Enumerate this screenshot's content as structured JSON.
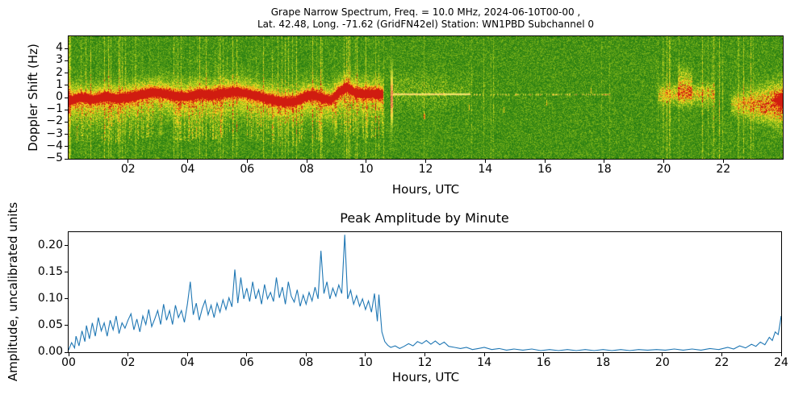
{
  "chart_data": [
    {
      "type": "heatmap",
      "name": "doppler-spectrogram",
      "title_line1": "Grape Narrow Spectrum, Freq. = 10.0 MHz, 2024-06-10T00-00 ,",
      "title_line2": "Lat.  42.48, Long. -71.62 (GridFN42el) Station: WN1PBD Subchannel 0",
      "xlabel": "Hours, UTC",
      "ylabel": "Doppler Shift (Hz)",
      "xlim": [
        0,
        24
      ],
      "ylim": [
        -5,
        5
      ],
      "xticks": [
        2,
        4,
        6,
        8,
        10,
        12,
        14,
        16,
        18,
        20,
        22
      ],
      "xtick_labels": [
        "02",
        "04",
        "06",
        "08",
        "10",
        "12",
        "14",
        "16",
        "18",
        "20",
        "22"
      ],
      "yticks": [
        4,
        3,
        2,
        1,
        0,
        -1,
        -2,
        -3,
        -4,
        -5
      ],
      "ytick_labels": [
        "4",
        "3",
        "2",
        "1",
        "0",
        "−1",
        "−2",
        "−3",
        "−4",
        "−5"
      ],
      "colormap": "green-yellow-orange-red",
      "background_color": "#1f7a14",
      "carrier_track": [
        [
          0,
          -0.25
        ],
        [
          0.4,
          0.05
        ],
        [
          0.8,
          -0.15
        ],
        [
          1.2,
          0.1
        ],
        [
          1.6,
          -0.05
        ],
        [
          2.0,
          0.05
        ],
        [
          2.4,
          0.25
        ],
        [
          2.8,
          0.45
        ],
        [
          3.2,
          0.35
        ],
        [
          3.6,
          0.15
        ],
        [
          4.0,
          0.1
        ],
        [
          4.4,
          0.35
        ],
        [
          4.8,
          0.2
        ],
        [
          5.2,
          0.4
        ],
        [
          5.6,
          0.5
        ],
        [
          6.0,
          0.35
        ],
        [
          6.4,
          0.1
        ],
        [
          6.8,
          -0.15
        ],
        [
          7.2,
          -0.35
        ],
        [
          7.6,
          -0.3
        ],
        [
          7.9,
          0.1
        ],
        [
          8.2,
          0.25
        ],
        [
          8.5,
          0.0
        ],
        [
          8.8,
          -0.2
        ],
        [
          9.1,
          0.5
        ],
        [
          9.35,
          0.85
        ],
        [
          9.6,
          0.45
        ],
        [
          9.9,
          0.3
        ],
        [
          10.2,
          0.35
        ],
        [
          10.55,
          0.3
        ]
      ],
      "features": {
        "main_band": {
          "start_hour": 0,
          "end_hour": 10.55,
          "core_halfwidth_hz": 0.38,
          "glow_halfwidth_hz": 1.4
        },
        "transition_streak_hour": 10.85,
        "thin_line": {
          "start_hour": 10.9,
          "end_hour": 13.5,
          "doppler_hz": 0.3
        },
        "faint_line": {
          "start_hour": 13.5,
          "end_hour": 18.2,
          "doppler_hz": 0.27
        },
        "evening_patch": {
          "start_hour": 19.8,
          "end_hour": 21.7,
          "center_hz": 0.3,
          "blob_start": 20.45,
          "blob_end": 20.95,
          "blob_center_hz": 0.9
        },
        "night_band": {
          "start_hour": 22.25,
          "end_hour": 24,
          "center_hz": -0.5,
          "red_tip_start": 23.6,
          "red_tip_center_hz": -0.2
        },
        "specks": [
          [
            11.95,
            -1.5
          ],
          [
            13.45,
            -0.8
          ],
          [
            14.62,
            -1.0
          ],
          [
            16.05,
            -0.4
          ],
          [
            17.55,
            0.6
          ]
        ]
      }
    },
    {
      "type": "line",
      "name": "peak-amplitude",
      "title": "Peak Amplitude by Minute",
      "xlabel": "Hours, UTC",
      "ylabel": "Amplitude, uncalibrated units",
      "xlim": [
        0,
        24
      ],
      "ylim": [
        0,
        0.225
      ],
      "xticks": [
        0,
        2,
        4,
        6,
        8,
        10,
        12,
        14,
        16,
        18,
        20,
        22,
        24
      ],
      "xtick_labels": [
        "00",
        "02",
        "04",
        "06",
        "08",
        "10",
        "12",
        "14",
        "16",
        "18",
        "20",
        "22",
        "24"
      ],
      "yticks": [
        0.0,
        0.05,
        0.1,
        0.15,
        0.2
      ],
      "ytick_labels": [
        "0.00",
        "0.05",
        "0.10",
        "0.15",
        "0.20"
      ],
      "line_color": "#1f77b4",
      "points": [
        [
          0.0,
          0.004
        ],
        [
          0.1,
          0.018
        ],
        [
          0.2,
          0.008
        ],
        [
          0.25,
          0.03
        ],
        [
          0.35,
          0.012
        ],
        [
          0.45,
          0.04
        ],
        [
          0.55,
          0.02
        ],
        [
          0.6,
          0.05
        ],
        [
          0.7,
          0.025
        ],
        [
          0.8,
          0.055
        ],
        [
          0.9,
          0.03
        ],
        [
          1.0,
          0.065
        ],
        [
          1.1,
          0.04
        ],
        [
          1.2,
          0.055
        ],
        [
          1.3,
          0.03
        ],
        [
          1.4,
          0.06
        ],
        [
          1.5,
          0.042
        ],
        [
          1.6,
          0.068
        ],
        [
          1.7,
          0.035
        ],
        [
          1.8,
          0.055
        ],
        [
          1.9,
          0.045
        ],
        [
          2.0,
          0.06
        ],
        [
          2.1,
          0.072
        ],
        [
          2.2,
          0.042
        ],
        [
          2.3,
          0.062
        ],
        [
          2.4,
          0.038
        ],
        [
          2.5,
          0.068
        ],
        [
          2.6,
          0.052
        ],
        [
          2.7,
          0.08
        ],
        [
          2.8,
          0.048
        ],
        [
          2.9,
          0.062
        ],
        [
          3.0,
          0.078
        ],
        [
          3.1,
          0.052
        ],
        [
          3.2,
          0.09
        ],
        [
          3.3,
          0.06
        ],
        [
          3.4,
          0.078
        ],
        [
          3.5,
          0.052
        ],
        [
          3.6,
          0.088
        ],
        [
          3.7,
          0.065
        ],
        [
          3.8,
          0.078
        ],
        [
          3.9,
          0.056
        ],
        [
          4.0,
          0.09
        ],
        [
          4.1,
          0.132
        ],
        [
          4.2,
          0.07
        ],
        [
          4.3,
          0.092
        ],
        [
          4.4,
          0.06
        ],
        [
          4.5,
          0.082
        ],
        [
          4.6,
          0.097
        ],
        [
          4.7,
          0.07
        ],
        [
          4.8,
          0.088
        ],
        [
          4.9,
          0.065
        ],
        [
          5.0,
          0.092
        ],
        [
          5.1,
          0.075
        ],
        [
          5.2,
          0.098
        ],
        [
          5.3,
          0.08
        ],
        [
          5.4,
          0.102
        ],
        [
          5.5,
          0.085
        ],
        [
          5.6,
          0.155
        ],
        [
          5.7,
          0.092
        ],
        [
          5.8,
          0.14
        ],
        [
          5.9,
          0.1
        ],
        [
          6.0,
          0.12
        ],
        [
          6.1,
          0.095
        ],
        [
          6.2,
          0.132
        ],
        [
          6.3,
          0.1
        ],
        [
          6.4,
          0.117
        ],
        [
          6.5,
          0.09
        ],
        [
          6.6,
          0.127
        ],
        [
          6.7,
          0.1
        ],
        [
          6.8,
          0.112
        ],
        [
          6.9,
          0.095
        ],
        [
          7.0,
          0.14
        ],
        [
          7.1,
          0.102
        ],
        [
          7.2,
          0.122
        ],
        [
          7.3,
          0.09
        ],
        [
          7.4,
          0.132
        ],
        [
          7.5,
          0.105
        ],
        [
          7.6,
          0.094
        ],
        [
          7.7,
          0.117
        ],
        [
          7.8,
          0.086
        ],
        [
          7.9,
          0.107
        ],
        [
          8.0,
          0.09
        ],
        [
          8.1,
          0.112
        ],
        [
          8.2,
          0.096
        ],
        [
          8.3,
          0.122
        ],
        [
          8.4,
          0.1
        ],
        [
          8.5,
          0.19
        ],
        [
          8.6,
          0.11
        ],
        [
          8.7,
          0.132
        ],
        [
          8.8,
          0.1
        ],
        [
          8.9,
          0.12
        ],
        [
          9.0,
          0.105
        ],
        [
          9.1,
          0.126
        ],
        [
          9.2,
          0.11
        ],
        [
          9.3,
          0.22
        ],
        [
          9.4,
          0.1
        ],
        [
          9.5,
          0.116
        ],
        [
          9.6,
          0.09
        ],
        [
          9.7,
          0.106
        ],
        [
          9.8,
          0.086
        ],
        [
          9.9,
          0.1
        ],
        [
          10.0,
          0.08
        ],
        [
          10.1,
          0.096
        ],
        [
          10.2,
          0.075
        ],
        [
          10.3,
          0.11
        ],
        [
          10.4,
          0.058
        ],
        [
          10.45,
          0.108
        ],
        [
          10.55,
          0.038
        ],
        [
          10.65,
          0.02
        ],
        [
          10.75,
          0.013
        ],
        [
          10.85,
          0.009
        ],
        [
          11.0,
          0.012
        ],
        [
          11.15,
          0.007
        ],
        [
          11.3,
          0.011
        ],
        [
          11.45,
          0.016
        ],
        [
          11.6,
          0.012
        ],
        [
          11.75,
          0.02
        ],
        [
          11.9,
          0.016
        ],
        [
          12.05,
          0.022
        ],
        [
          12.2,
          0.015
        ],
        [
          12.35,
          0.021
        ],
        [
          12.5,
          0.014
        ],
        [
          12.65,
          0.019
        ],
        [
          12.8,
          0.011
        ],
        [
          13.0,
          0.009
        ],
        [
          13.2,
          0.007
        ],
        [
          13.4,
          0.009
        ],
        [
          13.6,
          0.005
        ],
        [
          13.8,
          0.007
        ],
        [
          14.0,
          0.009
        ],
        [
          14.25,
          0.005
        ],
        [
          14.5,
          0.007
        ],
        [
          14.75,
          0.004
        ],
        [
          15.0,
          0.006
        ],
        [
          15.3,
          0.004
        ],
        [
          15.6,
          0.006
        ],
        [
          15.9,
          0.003
        ],
        [
          16.2,
          0.005
        ],
        [
          16.5,
          0.003
        ],
        [
          16.8,
          0.005
        ],
        [
          17.1,
          0.003
        ],
        [
          17.4,
          0.005
        ],
        [
          17.7,
          0.003
        ],
        [
          18.0,
          0.005
        ],
        [
          18.3,
          0.003
        ],
        [
          18.6,
          0.005
        ],
        [
          18.9,
          0.003
        ],
        [
          19.2,
          0.005
        ],
        [
          19.5,
          0.004
        ],
        [
          19.8,
          0.005
        ],
        [
          20.1,
          0.004
        ],
        [
          20.4,
          0.006
        ],
        [
          20.7,
          0.004
        ],
        [
          21.0,
          0.006
        ],
        [
          21.3,
          0.004
        ],
        [
          21.6,
          0.007
        ],
        [
          21.9,
          0.005
        ],
        [
          22.2,
          0.009
        ],
        [
          22.4,
          0.006
        ],
        [
          22.6,
          0.012
        ],
        [
          22.8,
          0.008
        ],
        [
          23.0,
          0.015
        ],
        [
          23.15,
          0.011
        ],
        [
          23.3,
          0.019
        ],
        [
          23.45,
          0.014
        ],
        [
          23.6,
          0.028
        ],
        [
          23.7,
          0.022
        ],
        [
          23.8,
          0.038
        ],
        [
          23.9,
          0.033
        ],
        [
          23.95,
          0.05
        ],
        [
          24.0,
          0.068
        ]
      ]
    }
  ]
}
